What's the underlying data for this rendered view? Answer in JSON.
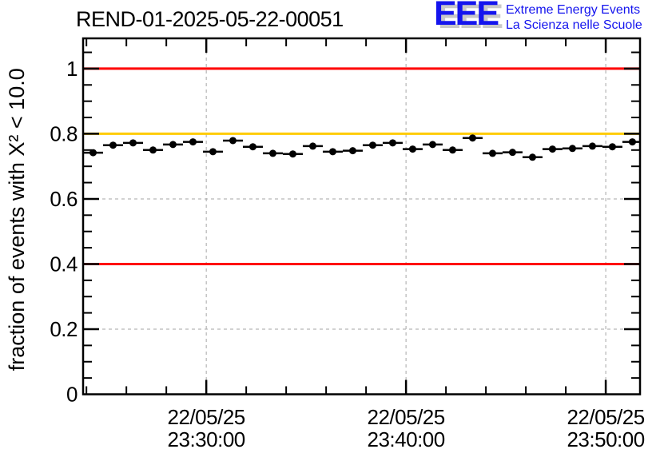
{
  "page": {
    "background": "#ffffff"
  },
  "header": {
    "title": "REND-01-2025-05-22-00051"
  },
  "logo": {
    "letters": "EEE",
    "line1": "Extreme Energy Events",
    "line2": "La Scienza nelle Scuole",
    "color": "#1414ee",
    "shadow_color": "#c8c8c8"
  },
  "chart_data": {
    "type": "scatter",
    "title": "REND-01-2025-05-22-00051",
    "xlabel": "",
    "ylabel": "fraction of events with X² < 10.0",
    "x_range": [
      "23:23:50",
      "23:51:43"
    ],
    "date_label": "22/05/25",
    "x_major_ticks": [
      {
        "date": "22/05/25",
        "time": "23:30:00"
      },
      {
        "date": "22/05/25",
        "time": "23:40:00"
      },
      {
        "date": "22/05/25",
        "time": "23:50:00"
      }
    ],
    "x_minor_step_minutes": 2,
    "ylim": [
      0,
      1.093
    ],
    "y_major_ticks": [
      {
        "value": 0.0,
        "label": "0"
      },
      {
        "value": 0.2,
        "label": "0.2"
      },
      {
        "value": 0.4,
        "label": "0.4"
      },
      {
        "value": 0.6,
        "label": "0.6"
      },
      {
        "value": 0.8,
        "label": "0.8"
      },
      {
        "value": 1.0,
        "label": "1"
      }
    ],
    "y_minor_step": 0.05,
    "grid": true,
    "grid_color": "#a6a6a6",
    "axis_color": "#000000",
    "legend": null,
    "reference_lines": [
      {
        "y": 1.0,
        "color": "#ff0000",
        "name": "upper-limit-line"
      },
      {
        "y": 0.8,
        "color": "#ffcc00",
        "name": "warning-line"
      },
      {
        "y": 0.4,
        "color": "#ff0000",
        "name": "lower-limit-line"
      }
    ],
    "series": [
      {
        "name": "fraction of events with X² < 10.0",
        "marker": "filled-circle",
        "color": "#000000",
        "x_bin_minutes": 1,
        "x_error_minutes": 0.5,
        "y_error": 0.006,
        "points": [
          {
            "t": "23:24:20",
            "y": 0.742
          },
          {
            "t": "23:25:20",
            "y": 0.765
          },
          {
            "t": "23:26:20",
            "y": 0.772
          },
          {
            "t": "23:27:20",
            "y": 0.75
          },
          {
            "t": "23:28:20",
            "y": 0.767
          },
          {
            "t": "23:29:20",
            "y": 0.775
          },
          {
            "t": "23:30:20",
            "y": 0.745
          },
          {
            "t": "23:31:20",
            "y": 0.779
          },
          {
            "t": "23:32:20",
            "y": 0.76
          },
          {
            "t": "23:33:20",
            "y": 0.74
          },
          {
            "t": "23:34:20",
            "y": 0.738
          },
          {
            "t": "23:35:20",
            "y": 0.762
          },
          {
            "t": "23:36:20",
            "y": 0.745
          },
          {
            "t": "23:37:20",
            "y": 0.748
          },
          {
            "t": "23:38:20",
            "y": 0.765
          },
          {
            "t": "23:39:20",
            "y": 0.772
          },
          {
            "t": "23:40:20",
            "y": 0.753
          },
          {
            "t": "23:41:20",
            "y": 0.767
          },
          {
            "t": "23:42:20",
            "y": 0.75
          },
          {
            "t": "23:43:20",
            "y": 0.787
          },
          {
            "t": "23:44:20",
            "y": 0.74
          },
          {
            "t": "23:45:20",
            "y": 0.743
          },
          {
            "t": "23:46:20",
            "y": 0.728
          },
          {
            "t": "23:47:20",
            "y": 0.753
          },
          {
            "t": "23:48:20",
            "y": 0.755
          },
          {
            "t": "23:49:20",
            "y": 0.762
          },
          {
            "t": "23:50:20",
            "y": 0.76
          },
          {
            "t": "23:51:20",
            "y": 0.775
          }
        ]
      }
    ]
  }
}
